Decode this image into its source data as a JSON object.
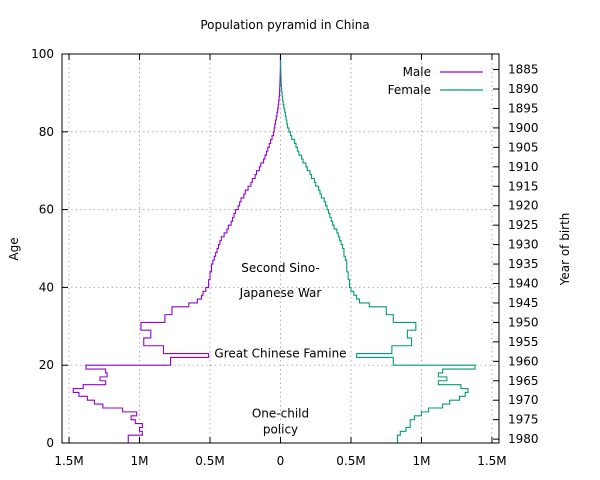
{
  "chart_data": {
    "type": "step",
    "title": "Population pyramid in China",
    "ylabel": "Age",
    "y2label": "Year of birth",
    "xlim": [
      -1.55,
      1.55
    ],
    "ylim": [
      0,
      100
    ],
    "x_ticks": [
      {
        "value": -1.5,
        "label": "1.5M"
      },
      {
        "value": -1.0,
        "label": "1M"
      },
      {
        "value": -0.5,
        "label": "0.5M"
      },
      {
        "value": 0,
        "label": "0"
      },
      {
        "value": 0.5,
        "label": "0.5M"
      },
      {
        "value": 1.0,
        "label": "1M"
      },
      {
        "value": 1.5,
        "label": "1.5M"
      }
    ],
    "y_ticks": [
      0,
      20,
      40,
      60,
      80,
      100
    ],
    "y2_ticks": [
      {
        "age": 1,
        "label": "1980"
      },
      {
        "age": 6,
        "label": "1975"
      },
      {
        "age": 11,
        "label": "1970"
      },
      {
        "age": 16,
        "label": "1965"
      },
      {
        "age": 21,
        "label": "1960"
      },
      {
        "age": 26,
        "label": "1955"
      },
      {
        "age": 31,
        "label": "1950"
      },
      {
        "age": 36,
        "label": "1945"
      },
      {
        "age": 41,
        "label": "1940"
      },
      {
        "age": 46,
        "label": "1935"
      },
      {
        "age": 51,
        "label": "1930"
      },
      {
        "age": 56,
        "label": "1925"
      },
      {
        "age": 61,
        "label": "1920"
      },
      {
        "age": 66,
        "label": "1915"
      },
      {
        "age": 71,
        "label": "1910"
      },
      {
        "age": 76,
        "label": "1905"
      },
      {
        "age": 81,
        "label": "1900"
      },
      {
        "age": 86,
        "label": "1895"
      },
      {
        "age": 91,
        "label": "1890"
      },
      {
        "age": 96,
        "label": "1885"
      }
    ],
    "grid": true,
    "legend_position": "top-right",
    "unit": "M",
    "ages": [
      0,
      1,
      2,
      3,
      4,
      5,
      6,
      7,
      8,
      9,
      10,
      11,
      12,
      13,
      14,
      15,
      16,
      17,
      18,
      19,
      20,
      21,
      22,
      23,
      24,
      25,
      26,
      27,
      28,
      29,
      30,
      31,
      32,
      33,
      34,
      35,
      36,
      37,
      38,
      39,
      40,
      41,
      42,
      43,
      44,
      45,
      46,
      47,
      48,
      49,
      50,
      51,
      52,
      53,
      54,
      55,
      56,
      57,
      58,
      59,
      60,
      61,
      62,
      63,
      64,
      65,
      66,
      67,
      68,
      69,
      70,
      71,
      72,
      73,
      74,
      75,
      76,
      77,
      78,
      79,
      80,
      81,
      82,
      83,
      84,
      85,
      86,
      87,
      88,
      89,
      90,
      91,
      92,
      93,
      94,
      95,
      96,
      97,
      98,
      99,
      100
    ],
    "series": [
      {
        "name": "Male",
        "color": "#9400d3",
        "side": "left",
        "values": [
          1.08,
          1.08,
          0.98,
          1.0,
          0.98,
          1.03,
          1.06,
          1.02,
          1.12,
          1.26,
          1.32,
          1.37,
          1.43,
          1.47,
          1.4,
          1.24,
          1.28,
          1.23,
          1.24,
          1.38,
          0.78,
          0.78,
          0.51,
          0.83,
          0.83,
          0.97,
          0.97,
          0.92,
          0.92,
          0.99,
          0.99,
          0.82,
          0.82,
          0.77,
          0.77,
          0.65,
          0.59,
          0.56,
          0.55,
          0.53,
          0.51,
          0.51,
          0.5,
          0.5,
          0.49,
          0.49,
          0.48,
          0.47,
          0.46,
          0.45,
          0.44,
          0.43,
          0.42,
          0.4,
          0.38,
          0.37,
          0.35,
          0.34,
          0.33,
          0.32,
          0.3,
          0.29,
          0.28,
          0.26,
          0.25,
          0.23,
          0.21,
          0.2,
          0.18,
          0.17,
          0.15,
          0.14,
          0.12,
          0.11,
          0.1,
          0.09,
          0.08,
          0.07,
          0.06,
          0.05,
          0.045,
          0.04,
          0.035,
          0.03,
          0.025,
          0.02,
          0.016,
          0.013,
          0.01,
          0.008,
          0.006,
          0.005,
          0.004,
          0.003,
          0.002,
          0.0015,
          0.001,
          0.0008,
          0.0006,
          0.0004,
          0.0003
        ]
      },
      {
        "name": "Female",
        "color": "#009e73",
        "side": "right",
        "values": [
          0.83,
          0.83,
          0.85,
          0.89,
          0.92,
          0.92,
          0.95,
          1.0,
          1.05,
          1.15,
          1.2,
          1.27,
          1.31,
          1.33,
          1.28,
          1.12,
          1.18,
          1.12,
          1.15,
          1.38,
          0.8,
          0.8,
          0.54,
          0.79,
          0.79,
          0.93,
          0.93,
          0.9,
          0.9,
          0.96,
          0.96,
          0.8,
          0.8,
          0.75,
          0.75,
          0.63,
          0.56,
          0.54,
          0.52,
          0.5,
          0.49,
          0.49,
          0.48,
          0.48,
          0.47,
          0.47,
          0.47,
          0.46,
          0.45,
          0.45,
          0.44,
          0.43,
          0.42,
          0.41,
          0.4,
          0.38,
          0.37,
          0.36,
          0.35,
          0.34,
          0.33,
          0.32,
          0.31,
          0.29,
          0.28,
          0.27,
          0.25,
          0.24,
          0.22,
          0.21,
          0.19,
          0.18,
          0.16,
          0.15,
          0.13,
          0.12,
          0.11,
          0.1,
          0.08,
          0.07,
          0.06,
          0.05,
          0.045,
          0.04,
          0.035,
          0.03,
          0.024,
          0.019,
          0.015,
          0.012,
          0.009,
          0.007,
          0.005,
          0.004,
          0.003,
          0.002,
          0.0015,
          0.001,
          0.0008,
          0.0005,
          0.0003
        ]
      }
    ],
    "annotations": [
      {
        "text": "Second Sino-",
        "age": 44,
        "x": 0
      },
      {
        "text": "Japanese War",
        "age": 37.5,
        "x": 0
      },
      {
        "text": "Great Chinese Famine",
        "age": 22,
        "x": 0
      },
      {
        "text": "One-child",
        "age": 6.5,
        "x": 0
      },
      {
        "text": "policy",
        "age": 2.5,
        "x": 0
      }
    ]
  }
}
